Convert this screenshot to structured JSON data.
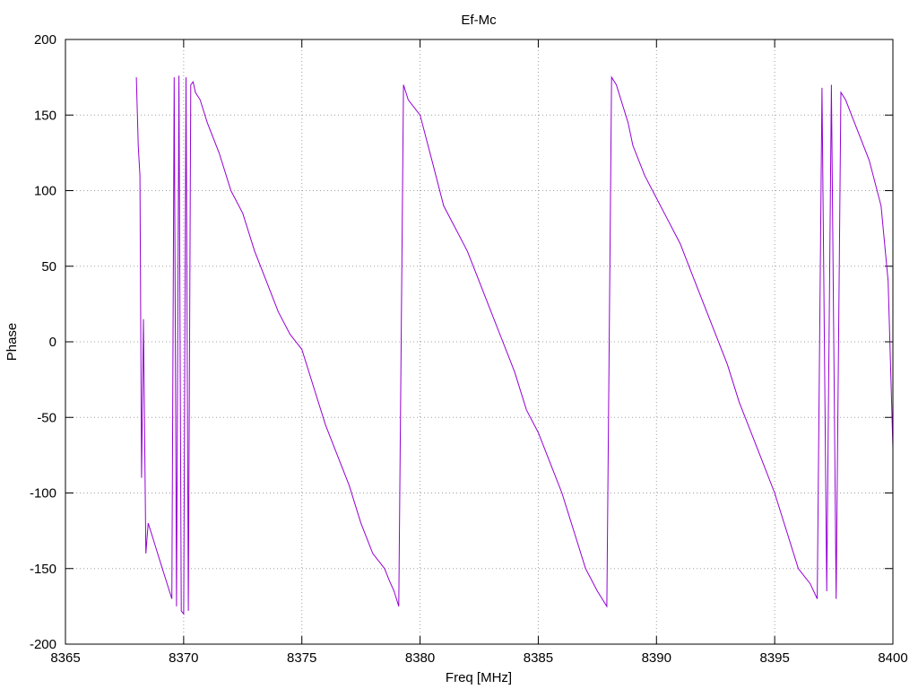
{
  "chart_data": {
    "type": "line",
    "title": "Ef-Mc",
    "xlabel": "Freq [MHz]",
    "ylabel": "Phase",
    "xlim": [
      8365,
      8400
    ],
    "ylim": [
      -200,
      200
    ],
    "xticks": [
      "8365",
      "8370",
      "8375",
      "8380",
      "8385",
      "8390",
      "8395",
      "8400"
    ],
    "yticks": [
      "200",
      "150",
      "100",
      "50",
      "0",
      "-50",
      "-100",
      "-150",
      "-200"
    ],
    "grid": true,
    "color": "#9400d3",
    "series": [
      {
        "x": [
          8368.0,
          8368.08,
          8368.15,
          8368.22,
          8368.3,
          8368.4,
          8368.5,
          8368.7,
          8368.9,
          8369.1,
          8369.3,
          8369.5,
          8369.6,
          8369.7,
          8369.8,
          8369.9,
          8370.0,
          8370.1,
          8370.2,
          8370.3,
          8370.4,
          8370.5,
          8370.7,
          8371.0,
          8371.5,
          8372.0,
          8372.5,
          8373.0,
          8373.5,
          8374.0,
          8374.5,
          8375.0,
          8375.5,
          8376.0,
          8376.5,
          8377.0,
          8377.5,
          8378.0,
          8378.5,
          8378.7,
          8378.9,
          8379.1,
          8379.3,
          8379.5,
          8380.0,
          8380.5,
          8381.0,
          8381.5,
          8382.0,
          8382.5,
          8383.0,
          8383.5,
          8384.0,
          8384.5,
          8385.0,
          8385.5,
          8386.0,
          8386.5,
          8387.0,
          8387.5,
          8387.9,
          8388.1,
          8388.3,
          8388.5,
          8388.8,
          8389.0,
          8389.5,
          8390.0,
          8390.5,
          8391.0,
          8391.5,
          8392.0,
          8392.5,
          8393.0,
          8393.5,
          8394.0,
          8394.5,
          8395.0,
          8395.5,
          8396.0,
          8396.5,
          8396.8,
          8397.0,
          8397.2,
          8397.4,
          8397.6,
          8397.8,
          8398.0,
          8398.5,
          8399.0,
          8399.5,
          8399.8,
          8400.0
        ],
        "y": [
          175,
          130,
          110,
          -90,
          15,
          -140,
          -120,
          -130,
          -140,
          -150,
          -160,
          -170,
          175,
          -175,
          176,
          -178,
          -180,
          175,
          -178,
          170,
          172,
          165,
          160,
          145,
          125,
          100,
          85,
          60,
          40,
          20,
          5,
          -5,
          -30,
          -55,
          -75,
          -95,
          -120,
          -140,
          -150,
          -158,
          -165,
          -175,
          170,
          160,
          150,
          120,
          90,
          75,
          60,
          40,
          20,
          0,
          -20,
          -45,
          -60,
          -80,
          -100,
          -125,
          -150,
          -165,
          -175,
          175,
          170,
          160,
          145,
          130,
          110,
          95,
          80,
          65,
          45,
          25,
          5,
          -15,
          -40,
          -60,
          -80,
          -100,
          -125,
          -150,
          -160,
          -170,
          168,
          -165,
          170,
          -170,
          165,
          160,
          140,
          120,
          90,
          40,
          -70
        ]
      }
    ]
  }
}
